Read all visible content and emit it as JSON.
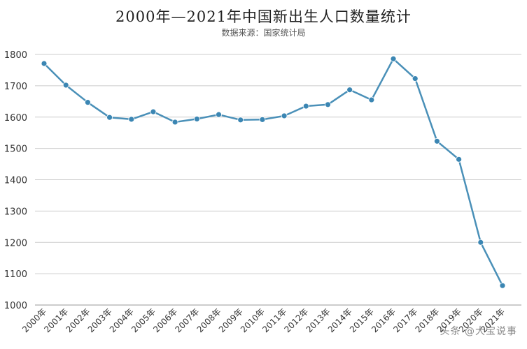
{
  "title": "2000年—2021年中国新出生人口数量统计",
  "subtitle": "数据来源：国家统计局",
  "watermark": "头条 @大宝说事",
  "colors": {
    "line": "#4a90b8",
    "marker": "#3b86b3",
    "grid": "#cccccc",
    "axis": "#999999"
  },
  "chart_data": {
    "type": "line",
    "title": "2000年—2021年中国新出生人口数量统计",
    "subtitle": "数据来源：国家统计局",
    "xlabel": "",
    "ylabel": "",
    "categories": [
      "2000年",
      "2001年",
      "2002年",
      "2003年",
      "2004年",
      "2005年",
      "2006年",
      "2007年",
      "2008年",
      "2009年",
      "2010年",
      "2011年",
      "2012年",
      "2013年",
      "2014年",
      "2015年",
      "2016年",
      "2017年",
      "2018年",
      "2019年",
      "2020年",
      "2021年"
    ],
    "series": [
      {
        "values": [
          1771,
          1702,
          1647,
          1599,
          1593,
          1617,
          1584,
          1594,
          1608,
          1591,
          1592,
          1604,
          1635,
          1640,
          1687,
          1655,
          1786,
          1723,
          1523,
          1465,
          1200,
          1062
        ]
      }
    ],
    "yticks": [
      1000,
      1100,
      1200,
      1300,
      1400,
      1500,
      1600,
      1700,
      1800
    ],
    "ylim": [
      1000,
      1800
    ],
    "grid": true,
    "legend": "none"
  }
}
